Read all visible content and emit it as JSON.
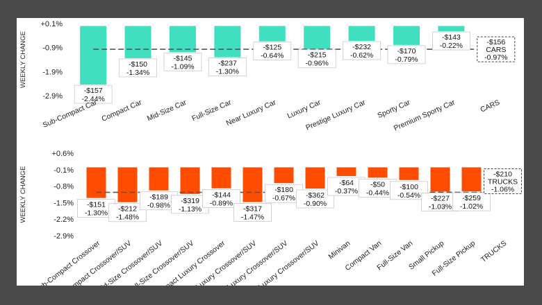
{
  "chart_data": [
    {
      "type": "bar",
      "ylabel": "WEEKLY CHANGE",
      "ylim": [
        -2.9,
        0.1
      ],
      "yticks": [
        "+0.1%",
        "-0.9%",
        "-1.9%",
        "-2.9%"
      ],
      "tick_values": [
        0.1,
        -0.9,
        -1.9,
        -2.9
      ],
      "categories": [
        "Sub-Compact Car",
        "Compact Car",
        "Mid-Size Car",
        "Full-Size Car",
        "Near Luxury Car",
        "Luxury Car",
        "Prestige Luxury Car",
        "Sporty Car",
        "Premium Sporty Car"
      ],
      "values": [
        -2.44,
        -1.34,
        -1.09,
        -1.3,
        -0.64,
        -0.96,
        -0.62,
        -0.79,
        -0.22
      ],
      "dollar_labels": [
        "-$157",
        "-$150",
        "-$145",
        "-$237",
        "-$125",
        "-$215",
        "-$232",
        "-$170",
        "-$143"
      ],
      "pct_labels": [
        "-2.44%",
        "-1.34%",
        "-1.09%",
        "-1.30%",
        "-0.64%",
        "-0.96%",
        "-0.62%",
        "-0.79%",
        "-0.22%"
      ],
      "color": "#40dfc0",
      "average": {
        "label": "CARS",
        "value": -0.97,
        "dollar": "-$156",
        "pct": "-0.97%"
      }
    },
    {
      "type": "bar",
      "ylabel": "WEEKLY CHANGE",
      "ylim": [
        -2.9,
        0.6
      ],
      "yticks": [
        "+0.6%",
        "-0.1%",
        "-0.8%",
        "-1.5%",
        "-2.2%",
        "-2.9%"
      ],
      "tick_values": [
        0.6,
        -0.1,
        -0.8,
        -1.5,
        -2.2,
        -2.9
      ],
      "categories": [
        "Sub-Compact Crossover",
        "Compact Crossover/SUV",
        "Mid-Size Crossover/SUV",
        "Full-Size Crossover/SUV",
        "Sub-Compact Luxury Crossover",
        "Compact Luxury Crossover/SUV",
        "Mid-Size Luxury Crossover/SUV",
        "Full-Size Luxury Crossover/SUV",
        "Minivan",
        "Compact Van",
        "Full-Size Van",
        "Small Pickup",
        "Full-Size Pickup"
      ],
      "values": [
        -1.3,
        -1.48,
        -0.98,
        -1.13,
        -0.89,
        -1.47,
        -0.67,
        -0.9,
        -0.37,
        -0.44,
        -0.54,
        -1.03,
        -1.02
      ],
      "dollar_labels": [
        "-$151",
        "-$212",
        "-$189",
        "-$319",
        "-$144",
        "-$317",
        "-$180",
        "-$362",
        "-$64",
        "-$50",
        "-$100",
        "-$227",
        "-$259"
      ],
      "pct_labels": [
        "-1.30%",
        "-1.48%",
        "-0.98%",
        "-1.13%",
        "-0.89%",
        "-1.47%",
        "-0.67%",
        "-0.90%",
        "-0.37%",
        "-0.44%",
        "-0.54%",
        "-1.03%",
        "-1.02%"
      ],
      "color": "#ff4d00",
      "average": {
        "label": "TRUCKS",
        "value": -1.06,
        "dollar": "-$210",
        "pct": "-1.06%"
      }
    }
  ]
}
